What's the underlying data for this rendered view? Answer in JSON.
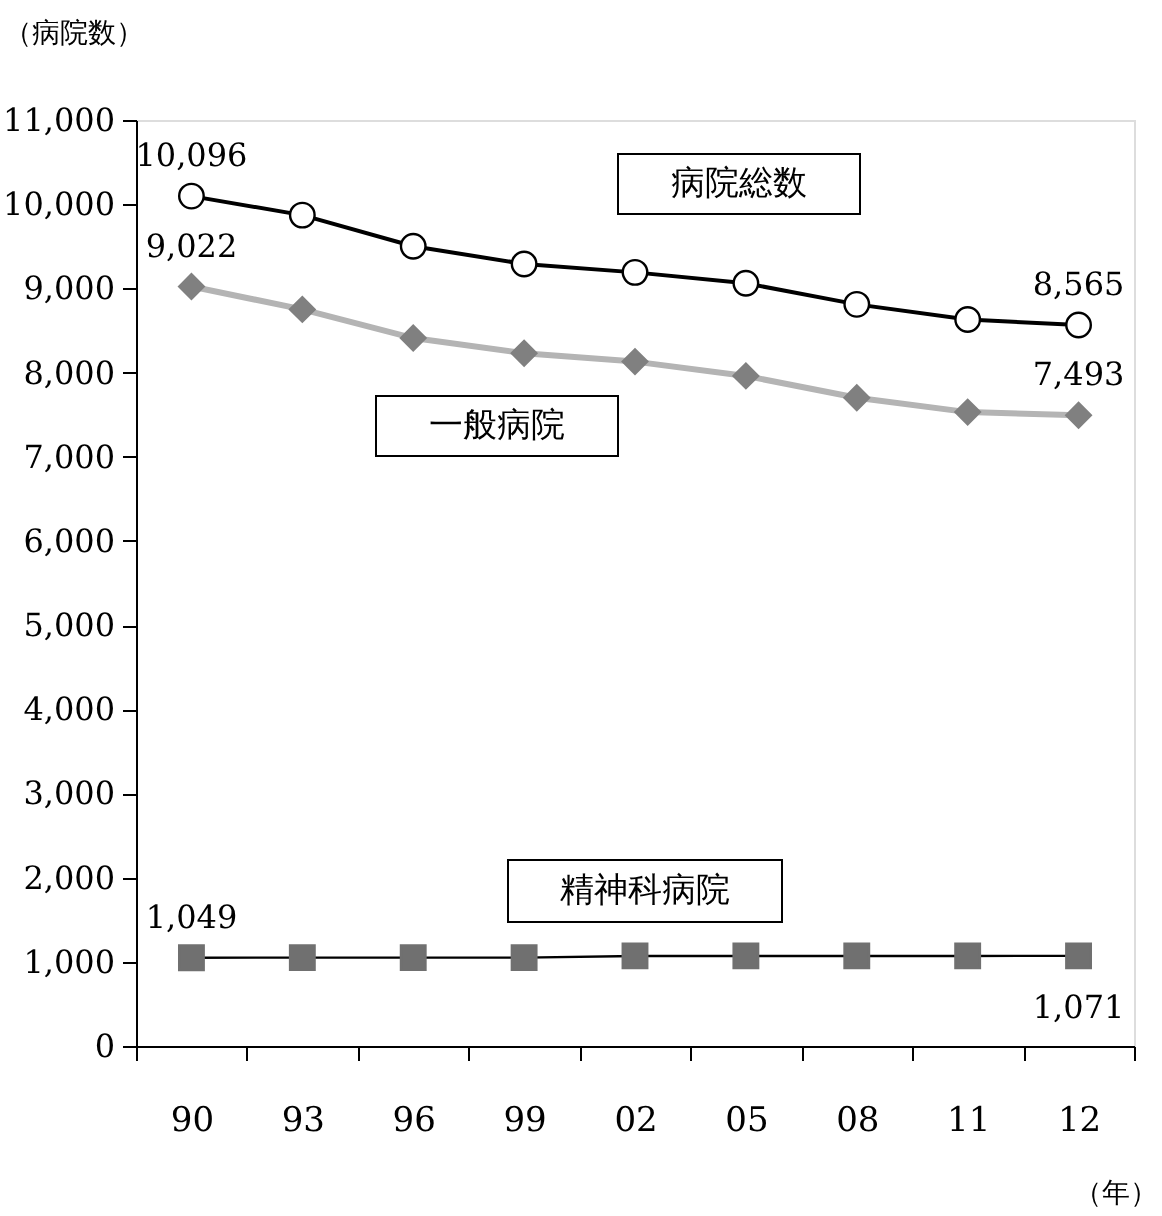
{
  "chart_data": {
    "type": "line",
    "ylabel": "（病院数）",
    "xlabel": "（年）",
    "categories": [
      "90",
      "93",
      "96",
      "99",
      "02",
      "05",
      "08",
      "11",
      "12"
    ],
    "ylim": [
      0,
      11000
    ],
    "yticks": [
      0,
      {
        "value": 1000,
        "label": "1,000"
      },
      {
        "value": 2000,
        "label": "2,000"
      },
      {
        "value": 3000,
        "label": "3,000"
      },
      {
        "value": 4000,
        "label": "4,000"
      },
      {
        "value": 5000,
        "label": "5,000"
      },
      {
        "value": 6000,
        "label": "6,000"
      },
      {
        "value": 7000,
        "label": "7,000"
      },
      {
        "value": 8000,
        "label": "8,000"
      },
      {
        "value": 9000,
        "label": "9,000"
      },
      {
        "value": 10000,
        "label": "10,000"
      },
      {
        "value": 11000,
        "label": "11,000"
      }
    ],
    "grid": false,
    "legend": false,
    "series": [
      {
        "name": "病院総数",
        "color": "#000000",
        "marker": "circle",
        "values": [
          10096,
          9870,
          9500,
          9290,
          9190,
          9060,
          8810,
          8630,
          8565
        ],
        "value_labels": [
          "10,096",
          null,
          null,
          null,
          null,
          null,
          null,
          null,
          "8,565"
        ]
      },
      {
        "name": "一般病院",
        "color": "#b4b4b4",
        "marker": "diamond",
        "values": [
          9022,
          8750,
          8410,
          8230,
          8130,
          7960,
          7700,
          7530,
          7493
        ],
        "value_labels": [
          "9,022",
          null,
          null,
          null,
          null,
          null,
          null,
          null,
          "7,493"
        ]
      },
      {
        "name": "精神科病院",
        "color": "#000000",
        "marker": "square",
        "values": [
          1049,
          1050,
          1050,
          1050,
          1070,
          1070,
          1070,
          1070,
          1071
        ],
        "value_labels": [
          "1,049",
          null,
          null,
          null,
          null,
          null,
          null,
          null,
          "1,071"
        ]
      }
    ]
  }
}
